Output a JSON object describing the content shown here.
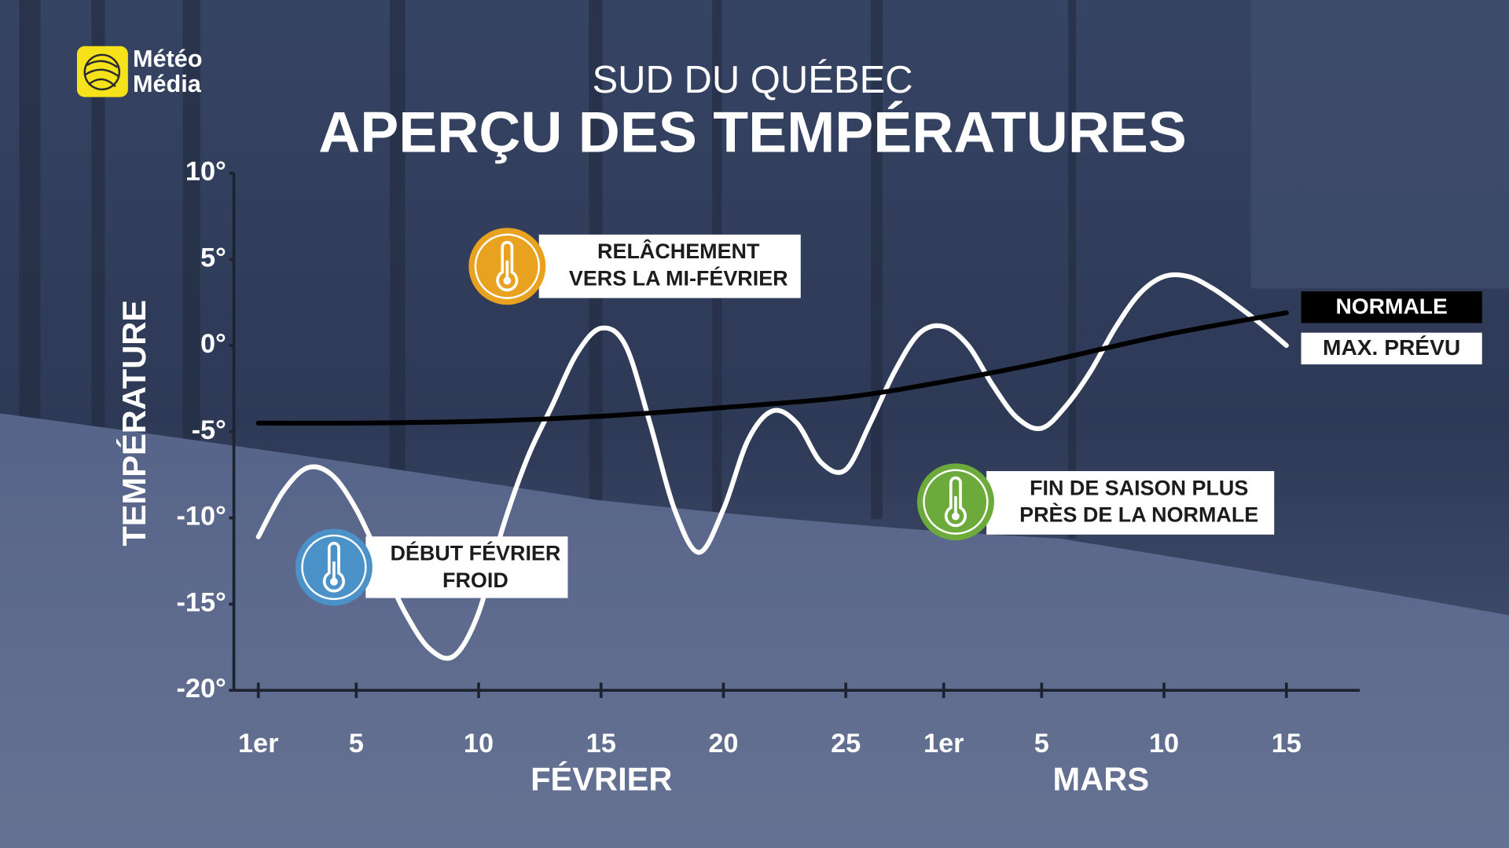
{
  "logo": {
    "lines": [
      "Météo",
      "Média"
    ]
  },
  "chart_data": {
    "type": "line",
    "subtitle": "SUD DU QUÉBEC",
    "title": "APERÇU DES TEMPÉRATURES",
    "ylabel": "TEMPÉRATURE",
    "x_groups": [
      "FÉVRIER",
      "MARS"
    ],
    "xlim": [
      0,
      46
    ],
    "xticks": [
      {
        "value": 1,
        "label": "1er"
      },
      5,
      10,
      15,
      20,
      25,
      {
        "value": 29,
        "label": "1er"
      },
      {
        "value": 33,
        "label": "5"
      },
      {
        "value": 38,
        "label": "10"
      },
      {
        "value": 43,
        "label": "15"
      }
    ],
    "ylim": [
      -20,
      10
    ],
    "yticks": [
      {
        "value": -20,
        "label": "-20°"
      },
      {
        "value": -15,
        "label": "-15°"
      },
      {
        "value": -10,
        "label": "-10°"
      },
      {
        "value": -5,
        "label": "-5°"
      },
      {
        "value": 0,
        "label": "0°"
      },
      {
        "value": 5,
        "label": "5°"
      },
      {
        "value": 10,
        "label": "10°"
      }
    ],
    "grid": false,
    "legend": "right",
    "series": [
      {
        "name": "NORMALE",
        "color": "#000000",
        "x": [
          1,
          5,
          10,
          15,
          20,
          25,
          29,
          33,
          38,
          43
        ],
        "values": [
          -4.5,
          -4.5,
          -4.4,
          -4.1,
          -3.6,
          -3.0,
          -2.1,
          -1.0,
          0.6,
          1.9
        ]
      },
      {
        "name": "MAX. PRÉVU",
        "color": "#ffffff",
        "x": [
          1,
          2,
          3,
          4,
          5,
          6,
          7,
          8,
          9,
          10,
          11,
          12,
          13,
          14,
          15,
          16,
          17,
          18,
          19,
          20,
          21,
          22,
          23,
          24,
          25,
          26,
          27,
          28,
          29,
          30,
          31,
          32,
          33,
          34,
          35,
          36,
          37,
          38,
          39,
          40,
          41,
          42,
          43
        ],
        "values": [
          -11.1,
          -8.5,
          -7.1,
          -7.5,
          -9.5,
          -12.5,
          -15.5,
          -17.6,
          -18.0,
          -15.5,
          -10.5,
          -6.5,
          -3.5,
          -0.5,
          1.0,
          0,
          -4.5,
          -9.5,
          -12.0,
          -9.5,
          -5.5,
          -3.8,
          -4.5,
          -6.8,
          -7.2,
          -4.5,
          -1.5,
          0.7,
          1.1,
          0,
          -2.3,
          -4.2,
          -4.8,
          -3.5,
          -1.5,
          1.0,
          3.0,
          4.0,
          4.0,
          3.3,
          2.3,
          1.2,
          0.0
        ]
      }
    ],
    "annotations": [
      {
        "lines": [
          "RELÂCHEMENT",
          "VERS LA MI-FÉVRIER"
        ],
        "color": "#e9a21f"
      },
      {
        "lines": [
          "DÉBUT FÉVRIER",
          "FROID"
        ],
        "color": "#4b92c9"
      },
      {
        "lines": [
          "FIN DE SAISON PLUS",
          "PRÈS DE LA NORMALE"
        ],
        "color": "#6cab3b"
      }
    ]
  }
}
